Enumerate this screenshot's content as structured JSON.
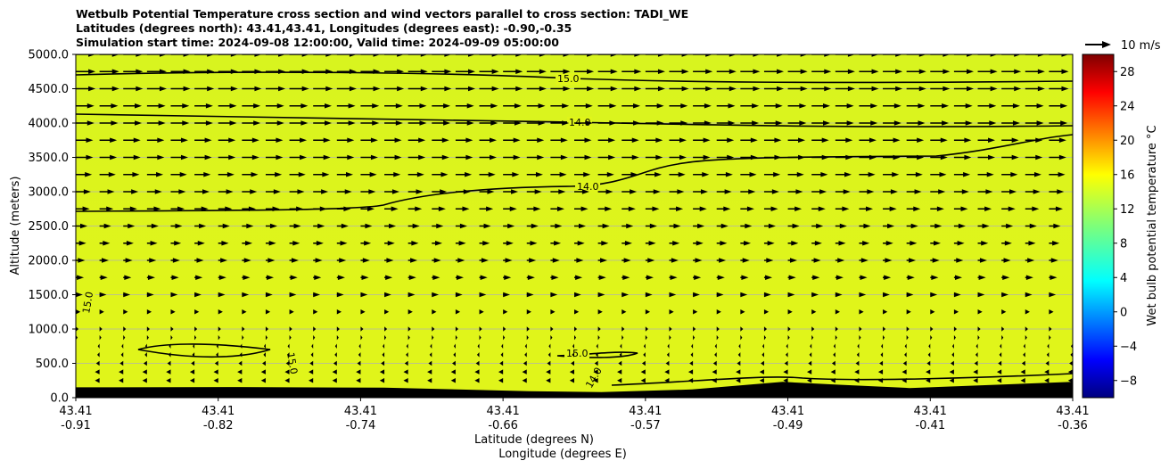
{
  "titles": {
    "line1": "Wetbulb Potential Temperature cross section and wind vectors parallel to cross section: TADI_WE",
    "line2": "Latitudes (degrees north): 43.41,43.41, Longitudes (degrees east): -0.90,-0.35",
    "line3": "Simulation start time: 2024-09-08 12:00:00, Valid time: 2024-09-09 05:00:00"
  },
  "chart_data": {
    "type": "heatmap",
    "ylabel": "Altitude (meters)",
    "xlabel_line1": "Latitude (degrees N)",
    "xlabel_line2": "Longitude (degrees E)",
    "ylim": [
      0,
      5000
    ],
    "y_ticks": [
      "0.0",
      "500.0",
      "1000.0",
      "1500.0",
      "2000.0",
      "2500.0",
      "3000.0",
      "3500.0",
      "4000.0",
      "4500.0",
      "5000.0"
    ],
    "x_ticks": [
      {
        "lat": "43.41",
        "lon": "-0.91"
      },
      {
        "lat": "43.41",
        "lon": "-0.82"
      },
      {
        "lat": "43.41",
        "lon": "-0.74"
      },
      {
        "lat": "43.41",
        "lon": "-0.66"
      },
      {
        "lat": "43.41",
        "lon": "-0.57"
      },
      {
        "lat": "43.41",
        "lon": "-0.49"
      },
      {
        "lat": "43.41",
        "lon": "-0.41"
      },
      {
        "lat": "43.41",
        "lon": "-0.36"
      }
    ],
    "lon_range": [
      -0.91,
      -0.36
    ],
    "grid": "horizontal",
    "colorbar": {
      "label": "Wet bulb potential temperature $^\\circ$C",
      "label_display": "Wet bulb potential temperature °C",
      "range": [
        -10,
        30
      ],
      "ticks": [
        "−8",
        "−4",
        "0",
        "4",
        "8",
        "12",
        "16",
        "20",
        "24",
        "28"
      ],
      "tick_values": [
        -8,
        -4,
        0,
        4,
        8,
        12,
        16,
        20,
        24,
        28
      ],
      "colormap": "jet"
    },
    "field_color": "#e0f51a",
    "upper_field_color": "#d8f41f",
    "terrain_color": "#000000",
    "quiver_key": {
      "label": "10 m/s",
      "speed": 10
    },
    "contour_labels": [
      "15.0",
      "14.0",
      "14.0",
      "15.0",
      "15.0",
      "15.0",
      "14.0"
    ],
    "wind_levels": [
      {
        "alt": 250,
        "speed": 2,
        "dir": "west"
      },
      {
        "alt": 375,
        "speed": 2,
        "dir": "west"
      },
      {
        "alt": 500,
        "speed": 1.5,
        "dir": "west"
      },
      {
        "alt": 625,
        "speed": 1,
        "dir": "west"
      },
      {
        "alt": 750,
        "speed": 0.5,
        "dir": "west"
      },
      {
        "alt": 875,
        "speed": 0.8,
        "dir": "east"
      },
      {
        "alt": 1000,
        "speed": 1.2,
        "dir": "east"
      },
      {
        "alt": 1250,
        "speed": 2,
        "dir": "east"
      },
      {
        "alt": 1500,
        "speed": 3,
        "dir": "east"
      },
      {
        "alt": 1750,
        "speed": 3.5,
        "dir": "east"
      },
      {
        "alt": 2000,
        "speed": 4,
        "dir": "east"
      },
      {
        "alt": 2250,
        "speed": 4.5,
        "dir": "east"
      },
      {
        "alt": 2500,
        "speed": 5,
        "dir": "east"
      },
      {
        "alt": 2750,
        "speed": 6,
        "dir": "east"
      },
      {
        "alt": 3000,
        "speed": 6.5,
        "dir": "east"
      },
      {
        "alt": 3250,
        "speed": 7,
        "dir": "east"
      },
      {
        "alt": 3500,
        "speed": 7.5,
        "dir": "east"
      },
      {
        "alt": 3750,
        "speed": 7.5,
        "dir": "east"
      },
      {
        "alt": 4000,
        "speed": 8,
        "dir": "east"
      },
      {
        "alt": 4250,
        "speed": 8,
        "dir": "east"
      },
      {
        "alt": 4500,
        "speed": 8.5,
        "dir": "east"
      },
      {
        "alt": 4750,
        "speed": 8.5,
        "dir": "east"
      },
      {
        "alt": 5000,
        "speed": 8.5,
        "dir": "east"
      }
    ],
    "terrain_profile": [
      {
        "lon": -0.91,
        "alt": 150
      },
      {
        "lon": -0.82,
        "alt": 155
      },
      {
        "lon": -0.74,
        "alt": 145
      },
      {
        "lon": -0.66,
        "alt": 95
      },
      {
        "lon": -0.62,
        "alt": 80
      },
      {
        "lon": -0.57,
        "alt": 120
      },
      {
        "lon": -0.52,
        "alt": 230
      },
      {
        "lon": -0.49,
        "alt": 190
      },
      {
        "lon": -0.45,
        "alt": 140
      },
      {
        "lon": -0.41,
        "alt": 180
      },
      {
        "lon": -0.36,
        "alt": 230
      }
    ]
  }
}
